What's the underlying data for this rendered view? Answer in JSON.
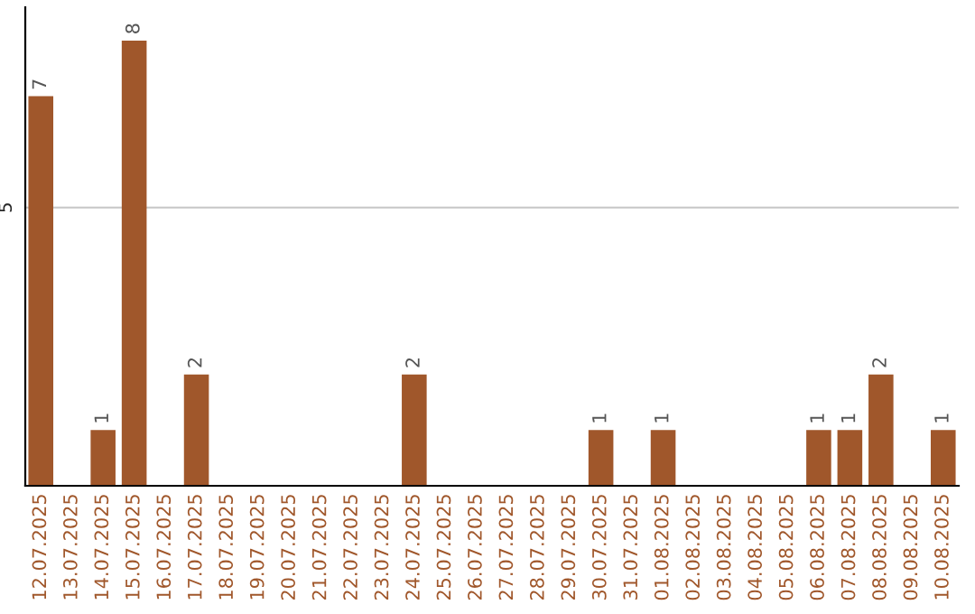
{
  "chart_data": {
    "type": "bar",
    "categories": [
      "12.07.2025",
      "13.07.2025",
      "14.07.2025",
      "15.07.2025",
      "16.07.2025",
      "17.07.2025",
      "18.07.2025",
      "19.07.2025",
      "20.07.2025",
      "21.07.2025",
      "22.07.2025",
      "23.07.2025",
      "24.07.2025",
      "25.07.2025",
      "26.07.2025",
      "27.07.2025",
      "28.07.2025",
      "29.07.2025",
      "30.07.2025",
      "31.07.2025",
      "01.08.2025",
      "02.08.2025",
      "03.08.2025",
      "04.08.2025",
      "05.08.2025",
      "06.08.2025",
      "07.08.2025",
      "08.08.2025",
      "09.08.2025",
      "10.08.2025"
    ],
    "values": [
      7,
      0,
      1,
      8,
      0,
      2,
      0,
      0,
      0,
      0,
      0,
      0,
      2,
      0,
      0,
      0,
      0,
      0,
      1,
      0,
      1,
      0,
      0,
      0,
      0,
      1,
      1,
      2,
      0,
      1
    ],
    "value_labels": [
      "7",
      null,
      "1",
      "8",
      null,
      "2",
      null,
      null,
      null,
      null,
      null,
      null,
      "2",
      null,
      null,
      null,
      null,
      null,
      "1",
      null,
      "1",
      null,
      null,
      null,
      null,
      "1",
      "1",
      "2",
      null,
      "1"
    ],
    "color": "#a0572b",
    "ylim": [
      0,
      8.6
    ],
    "yticks": [
      5
    ],
    "grid": "y"
  }
}
